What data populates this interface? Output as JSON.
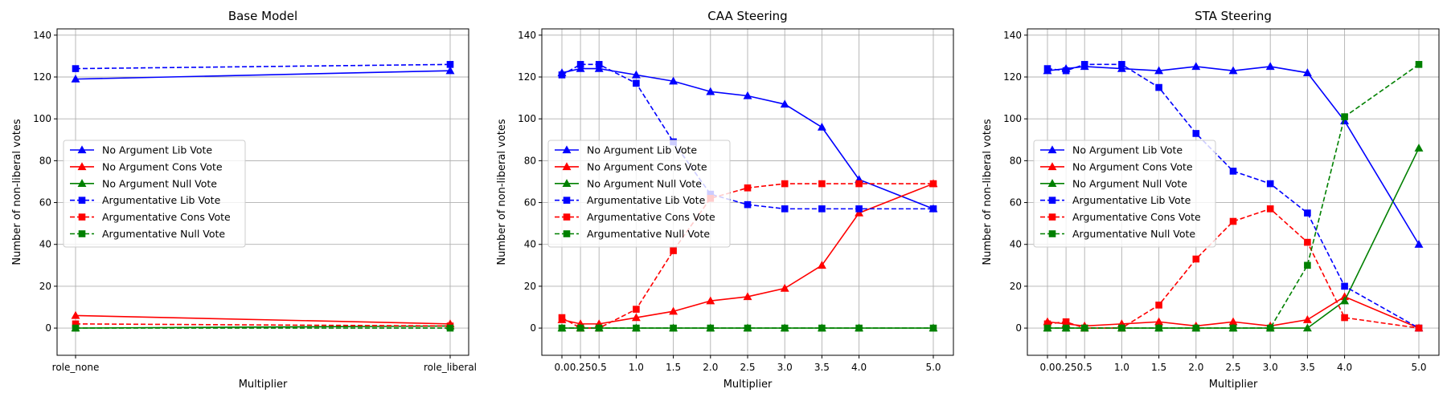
{
  "chart_data": [
    {
      "type": "line",
      "title": "Base Model",
      "xlabel": "Multiplier",
      "ylabel": "Number of non-liberal votes",
      "x_categories": [
        "role_none",
        "role_liberal"
      ],
      "ylim": [
        -13,
        143
      ],
      "yticks": [
        0,
        20,
        40,
        60,
        80,
        100,
        120,
        140
      ],
      "grid": true,
      "legend_placement": "center-left",
      "series": [
        {
          "name": "No Argument Lib Vote",
          "color": "#0000ff",
          "linestyle": "solid",
          "marker": "triangle",
          "values": [
            119,
            123
          ]
        },
        {
          "name": "No Argument Cons Vote",
          "color": "#ff0000",
          "linestyle": "solid",
          "marker": "triangle",
          "values": [
            6,
            2
          ]
        },
        {
          "name": "No Argument Null Vote",
          "color": "#008000",
          "linestyle": "solid",
          "marker": "triangle",
          "values": [
            0,
            1
          ]
        },
        {
          "name": "Argumentative Lib Vote",
          "color": "#0000ff",
          "linestyle": "dashed",
          "marker": "square",
          "values": [
            124,
            126
          ]
        },
        {
          "name": "Argumentative Cons Vote",
          "color": "#ff0000",
          "linestyle": "dashed",
          "marker": "square",
          "values": [
            2,
            1
          ]
        },
        {
          "name": "Argumentative Null Vote",
          "color": "#008000",
          "linestyle": "dashed",
          "marker": "square",
          "values": [
            0,
            0
          ]
        }
      ]
    },
    {
      "type": "line",
      "title": "CAA Steering",
      "xlabel": "Multiplier",
      "ylabel": "Number of non-liberal votes",
      "x_categories": [
        "0.0",
        "0.25",
        "0.5",
        "1.0",
        "1.5",
        "2.0",
        "2.5",
        "3.0",
        "3.5",
        "4.0",
        "5.0"
      ],
      "ylim": [
        -13,
        143
      ],
      "yticks": [
        0,
        20,
        40,
        60,
        80,
        100,
        120,
        140
      ],
      "grid": true,
      "legend_placement": "center-left",
      "series": [
        {
          "name": "No Argument Lib Vote",
          "color": "#0000ff",
          "linestyle": "solid",
          "marker": "triangle",
          "values": [
            122,
            124,
            124,
            121,
            118,
            113,
            111,
            107,
            96,
            71,
            57
          ]
        },
        {
          "name": "No Argument Cons Vote",
          "color": "#ff0000",
          "linestyle": "solid",
          "marker": "triangle",
          "values": [
            4,
            2,
            2,
            5,
            8,
            13,
            15,
            19,
            30,
            55,
            69
          ]
        },
        {
          "name": "No Argument Null Vote",
          "color": "#008000",
          "linestyle": "solid",
          "marker": "triangle",
          "values": [
            0,
            0,
            0,
            0,
            0,
            0,
            0,
            0,
            0,
            0,
            0
          ]
        },
        {
          "name": "Argumentative Lib Vote",
          "color": "#0000ff",
          "linestyle": "dashed",
          "marker": "square",
          "values": [
            121,
            126,
            126,
            117,
            89,
            64,
            59,
            57,
            57,
            57,
            57
          ]
        },
        {
          "name": "Argumentative Cons Vote",
          "color": "#ff0000",
          "linestyle": "dashed",
          "marker": "square",
          "values": [
            5,
            0,
            0,
            9,
            37,
            62,
            67,
            69,
            69,
            69,
            69
          ]
        },
        {
          "name": "Argumentative Null Vote",
          "color": "#008000",
          "linestyle": "dashed",
          "marker": "square",
          "values": [
            0,
            0,
            0,
            0,
            0,
            0,
            0,
            0,
            0,
            0,
            0
          ]
        }
      ]
    },
    {
      "type": "line",
      "title": "STA Steering",
      "xlabel": "Multiplier",
      "ylabel": "Number of non-liberal votes",
      "x_categories": [
        "0.0",
        "0.25",
        "0.5",
        "1.0",
        "1.5",
        "2.0",
        "2.5",
        "3.0",
        "3.5",
        "4.0",
        "5.0"
      ],
      "ylim": [
        -13,
        143
      ],
      "yticks": [
        0,
        20,
        40,
        60,
        80,
        100,
        120,
        140
      ],
      "grid": true,
      "legend_placement": "center-left",
      "series": [
        {
          "name": "No Argument Lib Vote",
          "color": "#0000ff",
          "linestyle": "solid",
          "marker": "triangle",
          "values": [
            123,
            124,
            125,
            124,
            123,
            125,
            123,
            125,
            122,
            99,
            40
          ]
        },
        {
          "name": "No Argument Cons Vote",
          "color": "#ff0000",
          "linestyle": "solid",
          "marker": "triangle",
          "values": [
            3,
            2,
            1,
            2,
            3,
            1,
            3,
            1,
            4,
            15,
            0
          ]
        },
        {
          "name": "No Argument Null Vote",
          "color": "#008000",
          "linestyle": "solid",
          "marker": "triangle",
          "values": [
            0,
            0,
            0,
            0,
            0,
            0,
            0,
            0,
            0,
            13,
            86
          ]
        },
        {
          "name": "Argumentative Lib Vote",
          "color": "#0000ff",
          "linestyle": "dashed",
          "marker": "square",
          "values": [
            124,
            123,
            126,
            126,
            115,
            93,
            75,
            69,
            55,
            20,
            0
          ]
        },
        {
          "name": "Argumentative Cons Vote",
          "color": "#ff0000",
          "linestyle": "dashed",
          "marker": "square",
          "values": [
            2,
            3,
            0,
            0,
            11,
            33,
            51,
            57,
            41,
            5,
            0
          ]
        },
        {
          "name": "Argumentative Null Vote",
          "color": "#008000",
          "linestyle": "dashed",
          "marker": "square",
          "values": [
            0,
            0,
            0,
            0,
            0,
            0,
            0,
            0,
            30,
            101,
            126
          ]
        }
      ]
    }
  ]
}
